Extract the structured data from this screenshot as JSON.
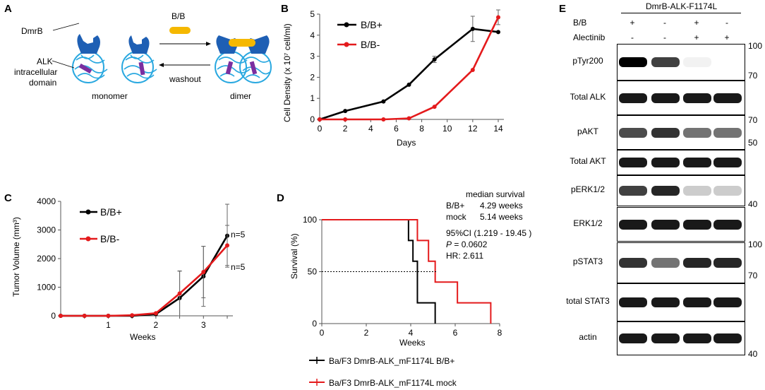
{
  "panels": {
    "a": "A",
    "b": "B",
    "c": "C",
    "d": "D",
    "e": "E"
  },
  "panel_a": {
    "ligand": "B/B",
    "dmrb_label": "DmrB",
    "alk_label_1": "ALK",
    "alk_label_2": "intracellular",
    "alk_label_3": "domain",
    "monomer": "monomer",
    "dimer": "dimer",
    "washout": "washout",
    "colors": {
      "dmrb": "#1e5fb4",
      "alk": "#29a8e0",
      "ligand": "#f5b800",
      "kinase": "#7b2fa0"
    }
  },
  "chart_data": [
    {
      "id": "B",
      "type": "line",
      "xlabel": "Days",
      "ylabel": "Cell Density (x 10⁷ cell/ml)",
      "xlim": [
        0,
        14
      ],
      "ylim": [
        0,
        5
      ],
      "xticks": [
        "0",
        "2",
        "4",
        "6",
        "8",
        "10",
        "12",
        "14"
      ],
      "yticks": [
        "0",
        "1",
        "2",
        "3",
        "4",
        "5"
      ],
      "series": [
        {
          "name": "B/B+",
          "color": "#000000",
          "x": [
            0,
            2,
            5,
            7,
            9,
            12,
            14
          ],
          "y": [
            0,
            0.4,
            0.85,
            1.65,
            2.85,
            4.3,
            4.15
          ],
          "err": [
            0,
            0,
            0,
            0,
            0.15,
            0.6,
            0
          ]
        },
        {
          "name": "B/B-",
          "color": "#e41a1c",
          "x": [
            0,
            2,
            5,
            7,
            9,
            12,
            14
          ],
          "y": [
            0,
            0,
            0,
            0.05,
            0.6,
            2.35,
            4.85
          ],
          "err": [
            0,
            0,
            0,
            0,
            0,
            0,
            0.35
          ]
        }
      ]
    },
    {
      "id": "C",
      "type": "line",
      "xlabel": "Weeks",
      "ylabel": "Tumor Volume (mm³)",
      "xlim": [
        0,
        3.5
      ],
      "ylim": [
        0,
        4000
      ],
      "xticks": [
        "1",
        "2",
        "3"
      ],
      "yticks": [
        "0",
        "1000",
        "2000",
        "3000",
        "4000"
      ],
      "n_labels": [
        "n=5",
        "n=5"
      ],
      "series": [
        {
          "name": "B/B+",
          "color": "#000000",
          "x": [
            0,
            0.5,
            1,
            1.5,
            2,
            2.5,
            3,
            3.5
          ],
          "y": [
            0,
            0,
            0,
            0,
            60,
            620,
            1380,
            2800
          ],
          "err": [
            0,
            0,
            0,
            0,
            0,
            950,
            1050,
            1100
          ]
        },
        {
          "name": "B/B-",
          "color": "#e41a1c",
          "x": [
            0,
            0.5,
            1,
            1.5,
            2,
            2.5,
            3,
            3.5
          ],
          "y": [
            0,
            0,
            0,
            20,
            90,
            780,
            1530,
            2460
          ],
          "err": [
            0,
            0,
            0,
            0,
            0,
            780,
            900,
            700
          ]
        }
      ]
    },
    {
      "id": "D",
      "type": "line",
      "subtype": "kaplan-meier",
      "xlabel": "Weeks",
      "ylabel": "Survival (%)",
      "xlim": [
        0,
        8
      ],
      "ylim": [
        0,
        100
      ],
      "xticks": [
        "0",
        "2",
        "4",
        "6",
        "8"
      ],
      "yticks": [
        "0",
        "50",
        "100"
      ],
      "series": [
        {
          "name": "Ba/F3 DmrB-ALK_mF1174L B/B+",
          "color": "#000000",
          "x": [
            0,
            3.9,
            3.9,
            4.1,
            4.1,
            4.3,
            4.3,
            5.1,
            5.1
          ],
          "y": [
            100,
            100,
            80,
            80,
            60,
            60,
            20,
            20,
            0
          ]
        },
        {
          "name": "Ba/F3 DmrB-ALK_mF1174L mock",
          "color": "#e41a1c",
          "x": [
            0,
            4.3,
            4.3,
            4.8,
            4.8,
            5.1,
            5.1,
            6.1,
            6.1,
            7.6,
            7.6
          ],
          "y": [
            100,
            100,
            80,
            80,
            60,
            60,
            40,
            40,
            20,
            20,
            0
          ]
        }
      ],
      "annotations": {
        "median_header": "median survival",
        "row1_name": "B/B+",
        "row1_value": "4.29 weeks",
        "row2_name": "mock",
        "row2_value": "5.14 weeks",
        "ci": "95%CI (1.219 - 19.45 )",
        "p_label": "P",
        "p_value": " = 0.0602",
        "hr": "HR: 2.611"
      }
    }
  ],
  "panel_e": {
    "title": "DmrB-ALK-F1174L",
    "row_bb": "B/B",
    "row_alec": "Alectinib",
    "bb_signs": [
      "+",
      "-",
      "+",
      "-"
    ],
    "alec_signs": [
      "-",
      "-",
      "+",
      "+"
    ],
    "blots": [
      {
        "label": "pTyr200",
        "mw": [
          "100",
          "70"
        ],
        "intensity": [
          1.0,
          0.75,
          0.05,
          0.0
        ]
      },
      {
        "label": "Total ALK",
        "mw": [],
        "intensity": [
          0.9,
          0.9,
          0.9,
          0.9
        ]
      },
      {
        "label": "pAKT",
        "mw": [
          "70",
          "50"
        ],
        "intensity": [
          0.7,
          0.8,
          0.55,
          0.55
        ]
      },
      {
        "label": "Total AKT",
        "mw": [],
        "intensity": [
          0.9,
          0.9,
          0.9,
          0.9
        ]
      },
      {
        "label": "pERK1/2",
        "mw": [
          "40"
        ],
        "intensity": [
          0.75,
          0.85,
          0.2,
          0.2
        ]
      },
      {
        "label": "ERK1/2",
        "mw": [],
        "intensity": [
          0.9,
          0.9,
          0.9,
          0.9
        ]
      },
      {
        "label": "pSTAT3",
        "mw": [
          "100",
          "70"
        ],
        "intensity": [
          0.8,
          0.55,
          0.85,
          0.85
        ]
      },
      {
        "label": "total STAT3",
        "mw": [],
        "intensity": [
          0.9,
          0.9,
          0.9,
          0.9
        ]
      },
      {
        "label": "actin",
        "mw": [
          "40"
        ],
        "intensity": [
          0.9,
          0.9,
          0.9,
          0.9
        ]
      }
    ]
  }
}
